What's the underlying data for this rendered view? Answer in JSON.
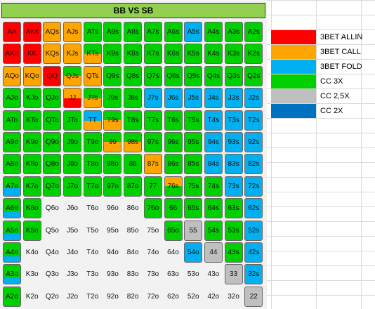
{
  "title": "BB VS SB",
  "colors": {
    "allin": "#ff0000",
    "call": "#ffa500",
    "fold": "#00b0f0",
    "cc3x": "#00d000",
    "cc25x": "#bfbfbf",
    "cc2x": "#0070c0"
  },
  "legend": [
    {
      "key": "allin",
      "label": "3BET ALLIN"
    },
    {
      "key": "call",
      "label": "3BET CALL"
    },
    {
      "key": "fold",
      "label": "3BET FOLD"
    },
    {
      "key": "cc3x",
      "label": "CC 3X"
    },
    {
      "key": "cc25x",
      "label": "CC 2,5X"
    },
    {
      "key": "cc2x",
      "label": "CC 2X"
    }
  ],
  "grid": [
    [
      {
        "t": "AA",
        "c": [
          "allin"
        ]
      },
      {
        "t": "AKs",
        "c": [
          "allin"
        ]
      },
      {
        "t": "AQs",
        "c": [
          "call"
        ]
      },
      {
        "t": "AJs",
        "c": [
          "call"
        ]
      },
      {
        "t": "ATs",
        "c": [
          "cc3x"
        ]
      },
      {
        "t": "A9s",
        "c": [
          "cc3x"
        ]
      },
      {
        "t": "A8s",
        "c": [
          "cc3x"
        ]
      },
      {
        "t": "A7s",
        "c": [
          "cc3x"
        ]
      },
      {
        "t": "A6s",
        "c": [
          "cc3x"
        ]
      },
      {
        "t": "A5s",
        "c": [
          "fold"
        ]
      },
      {
        "t": "A4s",
        "c": [
          "cc3x"
        ]
      },
      {
        "t": "A3s",
        "c": [
          "cc3x"
        ]
      },
      {
        "t": "A2s",
        "c": [
          "cc3x"
        ]
      }
    ],
    [
      {
        "t": "AKo",
        "c": [
          "allin"
        ]
      },
      {
        "t": "KK",
        "c": [
          "allin"
        ]
      },
      {
        "t": "KQs",
        "c": [
          "call"
        ]
      },
      {
        "t": "KJs",
        "c": [
          "call"
        ]
      },
      {
        "t": "KTs",
        "c": [
          "cc3x",
          "call"
        ],
        "s": 0.5
      },
      {
        "t": "K9s",
        "c": [
          "cc3x"
        ]
      },
      {
        "t": "K8s",
        "c": [
          "cc3x"
        ]
      },
      {
        "t": "K7s",
        "c": [
          "cc3x"
        ]
      },
      {
        "t": "K6s",
        "c": [
          "cc3x"
        ]
      },
      {
        "t": "K5s",
        "c": [
          "cc3x"
        ]
      },
      {
        "t": "K4s",
        "c": [
          "cc3x"
        ]
      },
      {
        "t": "K3s",
        "c": [
          "cc3x"
        ]
      },
      {
        "t": "K2s",
        "c": [
          "cc3x"
        ]
      }
    ],
    [
      {
        "t": "AQo",
        "c": [
          "call"
        ]
      },
      {
        "t": "KQo",
        "c": [
          "call"
        ]
      },
      {
        "t": "QQ",
        "c": [
          "allin"
        ]
      },
      {
        "t": "QJs",
        "c": [
          "cc3x",
          "call"
        ],
        "s": 0.5
      },
      {
        "t": "QTs",
        "c": [
          "call"
        ]
      },
      {
        "t": "Q9s",
        "c": [
          "cc3x"
        ]
      },
      {
        "t": "Q8s",
        "c": [
          "cc3x"
        ]
      },
      {
        "t": "Q7s",
        "c": [
          "cc3x"
        ]
      },
      {
        "t": "Q6s",
        "c": [
          "cc3x"
        ]
      },
      {
        "t": "Q5s",
        "c": [
          "cc3x"
        ]
      },
      {
        "t": "Q4s",
        "c": [
          "cc3x"
        ]
      },
      {
        "t": "Q3s",
        "c": [
          "cc3x"
        ]
      },
      {
        "t": "Q2s",
        "c": [
          "cc3x"
        ]
      }
    ],
    [
      {
        "t": "AJo",
        "c": [
          "cc3x"
        ]
      },
      {
        "t": "KJo",
        "c": [
          "cc3x"
        ]
      },
      {
        "t": "QJo",
        "c": [
          "cc3x"
        ]
      },
      {
        "t": "JJ",
        "c": [
          "call",
          "allin"
        ],
        "s": 0.5
      },
      {
        "t": "JTs",
        "c": [
          "cc3x",
          "call"
        ],
        "s": 0.5
      },
      {
        "t": "J9s",
        "c": [
          "cc3x"
        ]
      },
      {
        "t": "J8s",
        "c": [
          "cc3x"
        ]
      },
      {
        "t": "J7s",
        "c": [
          "fold"
        ]
      },
      {
        "t": "J6s",
        "c": [
          "fold"
        ]
      },
      {
        "t": "J5s",
        "c": [
          "fold"
        ]
      },
      {
        "t": "J4s",
        "c": [
          "fold"
        ]
      },
      {
        "t": "J3s",
        "c": [
          "fold"
        ]
      },
      {
        "t": "J2s",
        "c": [
          "fold"
        ]
      }
    ],
    [
      {
        "t": "ATo",
        "c": [
          "cc3x"
        ]
      },
      {
        "t": "KTo",
        "c": [
          "cc3x"
        ]
      },
      {
        "t": "QTo",
        "c": [
          "cc3x"
        ]
      },
      {
        "t": "JTo",
        "c": [
          "cc3x"
        ]
      },
      {
        "t": "TT",
        "c": [
          "fold",
          "call"
        ],
        "s": 0.45
      },
      {
        "t": "T9s",
        "c": [
          "cc3x",
          "call"
        ],
        "s": 0.5
      },
      {
        "t": "T8s",
        "c": [
          "cc3x"
        ]
      },
      {
        "t": "T7s",
        "c": [
          "cc3x"
        ]
      },
      {
        "t": "T6s",
        "c": [
          "cc3x"
        ]
      },
      {
        "t": "T5s",
        "c": [
          "cc3x"
        ]
      },
      {
        "t": "T4s",
        "c": [
          "fold"
        ]
      },
      {
        "t": "T3s",
        "c": [
          "fold"
        ]
      },
      {
        "t": "T2s",
        "c": [
          "fold"
        ]
      }
    ],
    [
      {
        "t": "A9o",
        "c": [
          "cc3x"
        ]
      },
      {
        "t": "K9o",
        "c": [
          "cc3x"
        ]
      },
      {
        "t": "Q9o",
        "c": [
          "cc3x"
        ]
      },
      {
        "t": "J9o",
        "c": [
          "cc3x"
        ]
      },
      {
        "t": "T9o",
        "c": [
          "cc3x"
        ]
      },
      {
        "t": "99",
        "c": [
          "cc3x",
          "call"
        ],
        "s": 0.5
      },
      {
        "t": "98s",
        "c": [
          "cc3x",
          "call"
        ],
        "s": 0.5
      },
      {
        "t": "97s",
        "c": [
          "cc3x"
        ]
      },
      {
        "t": "96s",
        "c": [
          "cc3x"
        ]
      },
      {
        "t": "95s",
        "c": [
          "cc3x"
        ]
      },
      {
        "t": "94s",
        "c": [
          "fold"
        ]
      },
      {
        "t": "93s",
        "c": [
          "fold"
        ]
      },
      {
        "t": "92s",
        "c": [
          "fold"
        ]
      }
    ],
    [
      {
        "t": "A8o",
        "c": [
          "cc3x"
        ]
      },
      {
        "t": "K8o",
        "c": [
          "cc3x"
        ]
      },
      {
        "t": "Q8o",
        "c": [
          "cc3x"
        ]
      },
      {
        "t": "J8o",
        "c": [
          "cc3x"
        ]
      },
      {
        "t": "T8o",
        "c": [
          "cc3x"
        ]
      },
      {
        "t": "98o",
        "c": [
          "cc3x"
        ]
      },
      {
        "t": "88",
        "c": [
          "cc3x"
        ]
      },
      {
        "t": "87s",
        "c": [
          "call"
        ]
      },
      {
        "t": "86s",
        "c": [
          "cc3x"
        ]
      },
      {
        "t": "85s",
        "c": [
          "cc3x"
        ]
      },
      {
        "t": "84s",
        "c": [
          "fold"
        ]
      },
      {
        "t": "83s",
        "c": [
          "fold"
        ]
      },
      {
        "t": "82s",
        "c": [
          "fold"
        ]
      }
    ],
    [
      {
        "t": "A7o",
        "c": [
          "cc3x",
          "fold"
        ],
        "s": 0.45
      },
      {
        "t": "K7o",
        "c": [
          "cc3x"
        ]
      },
      {
        "t": "Q7o",
        "c": [
          "cc3x"
        ]
      },
      {
        "t": "J7o",
        "c": [
          "cc3x"
        ]
      },
      {
        "t": "T7o",
        "c": [
          "cc3x"
        ]
      },
      {
        "t": "97o",
        "c": [
          "cc3x"
        ]
      },
      {
        "t": "87o",
        "c": [
          "cc3x"
        ]
      },
      {
        "t": "77",
        "c": [
          "cc3x"
        ]
      },
      {
        "t": "76s",
        "c": [
          "call",
          "cc3x"
        ],
        "s": 0.5
      },
      {
        "t": "75s",
        "c": [
          "cc3x"
        ]
      },
      {
        "t": "74s",
        "c": [
          "cc3x"
        ]
      },
      {
        "t": "73s",
        "c": [
          "fold"
        ]
      },
      {
        "t": "72s",
        "c": [
          "fold"
        ]
      }
    ],
    [
      {
        "t": "A6o",
        "c": [
          "cc3x",
          "fold"
        ],
        "s": 0.3
      },
      {
        "t": "K6o",
        "c": [
          "cc3x"
        ]
      },
      {
        "t": "Q6o",
        "c": []
      },
      {
        "t": "J6o",
        "c": []
      },
      {
        "t": "T6o",
        "c": []
      },
      {
        "t": "96o",
        "c": []
      },
      {
        "t": "86o",
        "c": []
      },
      {
        "t": "76o",
        "c": [
          "cc3x"
        ]
      },
      {
        "t": "66",
        "c": [
          "cc3x"
        ]
      },
      {
        "t": "65s",
        "c": [
          "cc3x"
        ]
      },
      {
        "t": "64s",
        "c": [
          "cc3x"
        ]
      },
      {
        "t": "63s",
        "c": [
          "cc3x"
        ]
      },
      {
        "t": "62s",
        "c": [
          "fold"
        ]
      }
    ],
    [
      {
        "t": "A5o",
        "c": [
          "cc3x",
          "fold"
        ],
        "s": 0.3
      },
      {
        "t": "K5o",
        "c": [
          "cc3x"
        ]
      },
      {
        "t": "Q5o",
        "c": []
      },
      {
        "t": "J5o",
        "c": []
      },
      {
        "t": "T5o",
        "c": []
      },
      {
        "t": "95o",
        "c": []
      },
      {
        "t": "85o",
        "c": []
      },
      {
        "t": "75o",
        "c": []
      },
      {
        "t": "65o",
        "c": [
          "cc3x"
        ]
      },
      {
        "t": "55",
        "c": [
          "cc25x"
        ]
      },
      {
        "t": "54s",
        "c": [
          "cc3x"
        ]
      },
      {
        "t": "53s",
        "c": [
          "cc3x"
        ]
      },
      {
        "t": "52s",
        "c": [
          "fold"
        ]
      }
    ],
    [
      {
        "t": "A4o",
        "c": [
          "cc3x",
          "fold"
        ],
        "s": 0.3
      },
      {
        "t": "K4o",
        "c": []
      },
      {
        "t": "Q4o",
        "c": []
      },
      {
        "t": "J4o",
        "c": []
      },
      {
        "t": "T4o",
        "c": []
      },
      {
        "t": "94o",
        "c": []
      },
      {
        "t": "84o",
        "c": []
      },
      {
        "t": "74o",
        "c": []
      },
      {
        "t": "64o",
        "c": []
      },
      {
        "t": "54o",
        "c": [
          "fold"
        ]
      },
      {
        "t": "44",
        "c": [
          "cc25x"
        ]
      },
      {
        "t": "43s",
        "c": [
          "cc3x"
        ]
      },
      {
        "t": "42s",
        "c": [
          "fold"
        ]
      }
    ],
    [
      {
        "t": "A3o",
        "c": [
          "cc3x",
          "fold"
        ],
        "s": 0.3
      },
      {
        "t": "K3o",
        "c": []
      },
      {
        "t": "Q3o",
        "c": []
      },
      {
        "t": "J3o",
        "c": []
      },
      {
        "t": "T3o",
        "c": []
      },
      {
        "t": "93o",
        "c": []
      },
      {
        "t": "83o",
        "c": []
      },
      {
        "t": "73o",
        "c": []
      },
      {
        "t": "63o",
        "c": []
      },
      {
        "t": "53o",
        "c": []
      },
      {
        "t": "43o",
        "c": []
      },
      {
        "t": "33",
        "c": [
          "cc25x"
        ]
      },
      {
        "t": "32s",
        "c": [
          "fold"
        ]
      }
    ],
    [
      {
        "t": "A2o",
        "c": [
          "cc3x"
        ]
      },
      {
        "t": "K2o",
        "c": []
      },
      {
        "t": "Q2o",
        "c": []
      },
      {
        "t": "J2o",
        "c": []
      },
      {
        "t": "T2o",
        "c": []
      },
      {
        "t": "92o",
        "c": []
      },
      {
        "t": "82o",
        "c": []
      },
      {
        "t": "72o",
        "c": []
      },
      {
        "t": "62o",
        "c": []
      },
      {
        "t": "52o",
        "c": []
      },
      {
        "t": "42o",
        "c": []
      },
      {
        "t": "32o",
        "c": []
      },
      {
        "t": "22",
        "c": [
          "cc25x"
        ]
      }
    ]
  ]
}
